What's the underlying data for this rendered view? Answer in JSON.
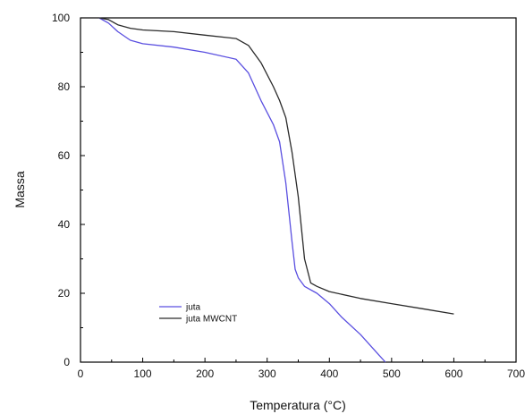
{
  "chart_data": {
    "type": "line",
    "title": "",
    "xlabel": "Temperatura (°C)",
    "ylabel": "Massa",
    "xlim": [
      0,
      700
    ],
    "ylim": [
      0,
      100
    ],
    "x_ticks": [
      0,
      100,
      200,
      300,
      400,
      500,
      600,
      700
    ],
    "y_ticks": [
      0,
      20,
      40,
      60,
      80,
      100
    ],
    "grid": false,
    "legend_position": "lower-left",
    "series": [
      {
        "name": "juta",
        "color": "#5a4fe0",
        "x": [
          30,
          45,
          60,
          80,
          100,
          150,
          200,
          250,
          270,
          290,
          310,
          320,
          330,
          340,
          345,
          350,
          360,
          380,
          400,
          420,
          450,
          480,
          490
        ],
        "y": [
          100,
          98.5,
          96,
          93.5,
          92.5,
          91.5,
          90,
          88,
          84,
          76,
          69,
          64,
          52,
          35,
          27,
          24.5,
          22,
          20,
          17,
          13,
          8,
          2,
          0
        ]
      },
      {
        "name": "juta MWCNT",
        "color": "#2a2a2a",
        "x": [
          30,
          45,
          60,
          80,
          100,
          150,
          200,
          250,
          270,
          290,
          310,
          320,
          330,
          340,
          350,
          360,
          370,
          380,
          400,
          450,
          500,
          550,
          600
        ],
        "y": [
          100,
          99.5,
          98,
          97,
          96.5,
          96,
          95,
          94,
          92,
          87,
          80,
          76,
          71,
          61,
          48,
          30,
          23,
          22,
          20.5,
          18.5,
          17,
          15.5,
          14
        ]
      }
    ]
  }
}
